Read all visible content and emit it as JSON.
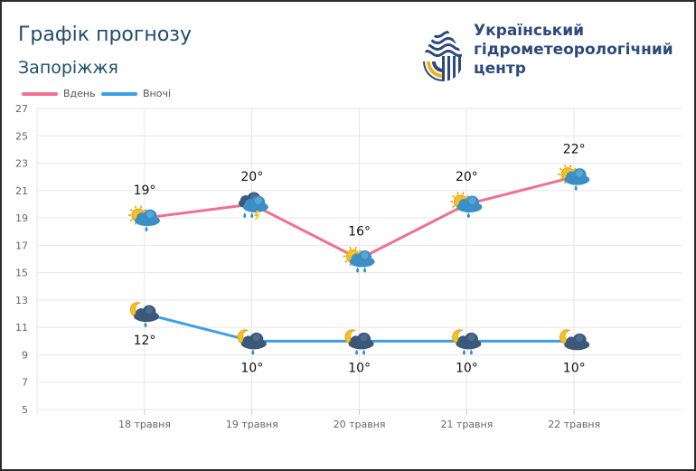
{
  "title": "Графік прогнозу",
  "subtitle": "Запоріжжя",
  "logo": {
    "lines": [
      "Український",
      "гідрометеорологічний",
      "центр"
    ]
  },
  "colors": {
    "day": "#f07090",
    "night": "#3aa0e6",
    "title": "#1f4e6b",
    "logo_text": "#2c4a7c",
    "logo_blue": "#2c4a7c",
    "logo_yellow": "#f2b21a"
  },
  "chart_data": {
    "type": "line",
    "categories": [
      "18 травня",
      "19 травня",
      "20 травня",
      "21 травня",
      "22 травня"
    ],
    "series": [
      {
        "name": "Вдень",
        "values": [
          19,
          20,
          16,
          20,
          22
        ],
        "labels": [
          "19°",
          "20°",
          "16°",
          "20°",
          "22°"
        ],
        "icons": [
          "partly-cloudy-rain-icon",
          "thunderstorm-rain-icon",
          "partly-cloudy-rain-icon",
          "partly-cloudy-rain-icon",
          "partly-cloudy-rain-icon"
        ]
      },
      {
        "name": "Вночі",
        "values": [
          12,
          10,
          10,
          10,
          10
        ],
        "labels": [
          "12°",
          "10°",
          "10°",
          "10°",
          "10°"
        ],
        "icons": [
          "moon-cloud-rain-icon",
          "moon-cloud-rain-icon",
          "moon-cloud-rain-icon",
          "moon-cloud-rain-icon",
          "moon-cloud-icon"
        ]
      }
    ],
    "ylim": [
      5,
      27
    ],
    "yticks": [
      5,
      7,
      9,
      11,
      13,
      15,
      17,
      19,
      21,
      23,
      25,
      27
    ],
    "grid": true,
    "legend": "top-left"
  }
}
